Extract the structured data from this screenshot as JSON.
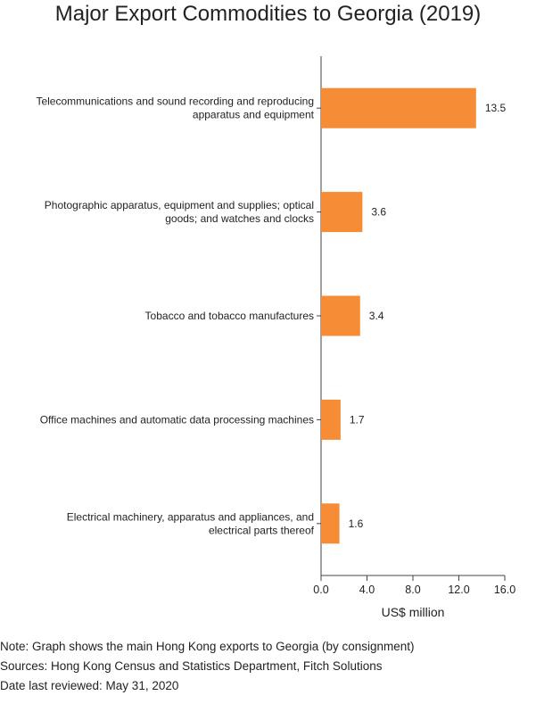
{
  "chart_data": {
    "type": "bar",
    "orientation": "horizontal",
    "title": "Major Export Commodities to Georgia (2019)",
    "categories": [
      [
        "Telecommunications and sound recording and reproducing",
        "apparatus and equipment"
      ],
      [
        "Photographic apparatus, equipment and supplies; optical",
        "goods; and watches and clocks"
      ],
      [
        "Tobacco and tobacco manufactures"
      ],
      [
        "Office machines and automatic data processing machines"
      ],
      [
        "Electrical machinery, apparatus and appliances, and",
        "electrical parts thereof"
      ]
    ],
    "values": [
      13.5,
      3.6,
      3.4,
      1.7,
      1.6
    ],
    "value_labels": [
      "13.5",
      "3.6",
      "3.4",
      "1.7",
      "1.6"
    ],
    "xlabel": "US$ million",
    "xlim": [
      0,
      16
    ],
    "xticks": [
      "0.0",
      "4.0",
      "8.0",
      "12.0",
      "16.0"
    ],
    "grid": false,
    "bar_color": "#f68c35"
  },
  "notes": [
    "Note: Graph shows the main Hong Kong exports to Georgia (by consignment)",
    "Sources: Hong Kong Census and Statistics Department, Fitch Solutions",
    "Date last reviewed: May 31, 2020"
  ]
}
